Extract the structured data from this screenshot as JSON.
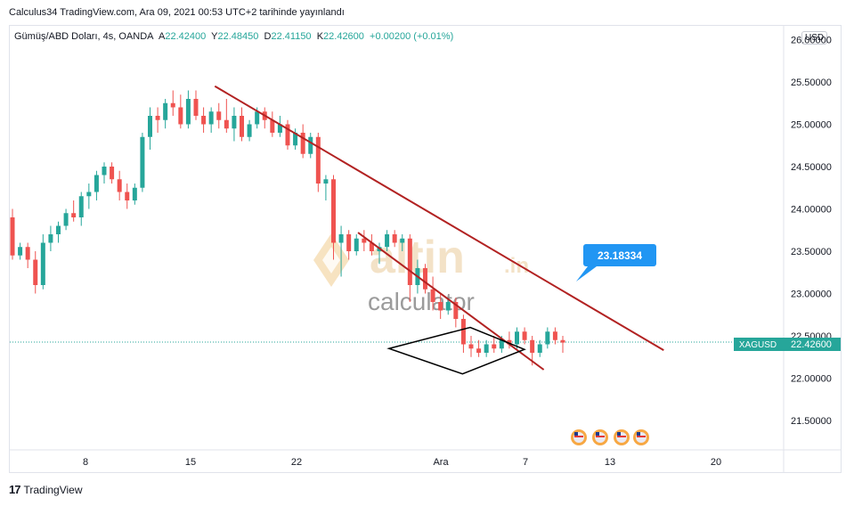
{
  "header": {
    "publish_text": "Calculus34 TradingView.com, Ara 09, 2021 00:53 UTC+2 tarihinde yayınlandı"
  },
  "legend": {
    "symbol_title": "Gümüş/ABD Doları, 4s, OANDA",
    "open_label": "A",
    "open_value": "22.42400",
    "high_label": "Y",
    "high_value": "22.48450",
    "low_label": "D",
    "low_value": "22.41150",
    "close_label": "K",
    "close_value": "22.42600",
    "change_value": "+0.00200 (+0.01%)"
  },
  "currency_button": "USD",
  "price_tag": {
    "symbol": "XAGUSD",
    "value": "22.42600"
  },
  "callout_value": "23.18334",
  "watermark": {
    "brand": "altin",
    "brand_suffix": ".in",
    "sub": "calculator"
  },
  "footer": {
    "brand": "TradingView"
  },
  "colors": {
    "up": "#26a69a",
    "down": "#ef5350",
    "trendline": "#b22222",
    "callout": "#2196f3",
    "price_line": "#26a69a"
  },
  "chart_data": {
    "type": "candlestick",
    "y_ticks": [
      "21.50000",
      "22.00000",
      "22.50000",
      "23.00000",
      "23.50000",
      "24.00000",
      "24.50000",
      "25.00000",
      "25.50000",
      "26.00000"
    ],
    "x_ticks": [
      "8",
      "15",
      "22",
      "Ara",
      "7",
      "13",
      "20"
    ],
    "ylim": [
      21.2,
      26.05
    ],
    "last_price": 22.426,
    "candles": [
      [
        23.9,
        24.0,
        23.4,
        23.45
      ],
      [
        23.45,
        23.6,
        23.4,
        23.55
      ],
      [
        23.55,
        23.6,
        23.3,
        23.4
      ],
      [
        23.4,
        23.5,
        23.0,
        23.1
      ],
      [
        23.1,
        23.7,
        23.05,
        23.6
      ],
      [
        23.6,
        23.8,
        23.5,
        23.7
      ],
      [
        23.7,
        23.85,
        23.6,
        23.8
      ],
      [
        23.8,
        24.0,
        23.75,
        23.95
      ],
      [
        23.95,
        24.1,
        23.85,
        23.9
      ],
      [
        23.9,
        24.2,
        23.8,
        24.15
      ],
      [
        24.15,
        24.3,
        24.0,
        24.2
      ],
      [
        24.2,
        24.45,
        24.1,
        24.4
      ],
      [
        24.4,
        24.55,
        24.3,
        24.5
      ],
      [
        24.5,
        24.55,
        24.3,
        24.35
      ],
      [
        24.35,
        24.45,
        24.1,
        24.2
      ],
      [
        24.2,
        24.3,
        24.0,
        24.1
      ],
      [
        24.1,
        24.3,
        24.05,
        24.25
      ],
      [
        24.25,
        24.9,
        24.2,
        24.85
      ],
      [
        24.85,
        25.2,
        24.7,
        25.1
      ],
      [
        25.1,
        25.2,
        24.9,
        25.05
      ],
      [
        25.05,
        25.3,
        24.95,
        25.25
      ],
      [
        25.25,
        25.4,
        25.1,
        25.2
      ],
      [
        25.2,
        25.35,
        24.95,
        25.0
      ],
      [
        25.0,
        25.4,
        24.95,
        25.3
      ],
      [
        25.3,
        25.4,
        25.05,
        25.1
      ],
      [
        25.1,
        25.2,
        24.9,
        25.0
      ],
      [
        25.0,
        25.2,
        24.9,
        25.15
      ],
      [
        25.15,
        25.25,
        24.95,
        25.05
      ],
      [
        25.05,
        25.3,
        24.9,
        24.95
      ],
      [
        24.95,
        25.2,
        24.8,
        25.1
      ],
      [
        25.1,
        25.2,
        24.8,
        24.85
      ],
      [
        24.85,
        25.05,
        24.8,
        25.0
      ],
      [
        25.0,
        25.2,
        24.95,
        25.15
      ],
      [
        25.15,
        25.2,
        24.95,
        25.05
      ],
      [
        25.05,
        25.15,
        24.85,
        24.9
      ],
      [
        24.9,
        25.1,
        24.85,
        25.0
      ],
      [
        25.0,
        25.05,
        24.7,
        24.75
      ],
      [
        24.75,
        24.95,
        24.7,
        24.9
      ],
      [
        24.9,
        25.0,
        24.6,
        24.65
      ],
      [
        24.65,
        24.9,
        24.6,
        24.85
      ],
      [
        24.85,
        24.9,
        24.2,
        24.3
      ],
      [
        24.3,
        24.4,
        24.1,
        24.35
      ],
      [
        24.35,
        24.4,
        23.4,
        23.6
      ],
      [
        23.6,
        23.8,
        23.2,
        23.7
      ],
      [
        23.7,
        23.75,
        23.4,
        23.5
      ],
      [
        23.5,
        23.7,
        23.45,
        23.65
      ],
      [
        23.65,
        23.75,
        23.5,
        23.6
      ],
      [
        23.6,
        23.7,
        23.45,
        23.5
      ],
      [
        23.5,
        23.6,
        23.35,
        23.55
      ],
      [
        23.55,
        23.75,
        23.5,
        23.7
      ],
      [
        23.7,
        23.75,
        23.55,
        23.6
      ],
      [
        23.6,
        23.7,
        23.5,
        23.65
      ],
      [
        23.65,
        23.7,
        22.9,
        23.1
      ],
      [
        23.1,
        23.4,
        23.0,
        23.3
      ],
      [
        23.3,
        23.35,
        23.0,
        23.05
      ],
      [
        23.05,
        23.2,
        22.8,
        22.9
      ],
      [
        22.9,
        23.0,
        22.7,
        22.8
      ],
      [
        22.8,
        22.95,
        22.75,
        22.9
      ],
      [
        22.9,
        22.95,
        22.6,
        22.7
      ],
      [
        22.7,
        22.75,
        22.3,
        22.4
      ],
      [
        22.4,
        22.5,
        22.25,
        22.35
      ],
      [
        22.35,
        22.45,
        22.25,
        22.3
      ],
      [
        22.3,
        22.45,
        22.25,
        22.4
      ],
      [
        22.4,
        22.5,
        22.3,
        22.35
      ],
      [
        22.35,
        22.5,
        22.3,
        22.45
      ],
      [
        22.45,
        22.55,
        22.35,
        22.4
      ],
      [
        22.4,
        22.6,
        22.35,
        22.55
      ],
      [
        22.55,
        22.6,
        22.4,
        22.45
      ],
      [
        22.45,
        22.5,
        22.15,
        22.3
      ],
      [
        22.3,
        22.45,
        22.25,
        22.4
      ],
      [
        22.4,
        22.6,
        22.35,
        22.55
      ],
      [
        22.55,
        22.6,
        22.4,
        22.45
      ],
      [
        22.45,
        22.5,
        22.3,
        22.42
      ]
    ],
    "trendlines": [
      {
        "name": "upper",
        "from": [
          0.265,
          25.45
        ],
        "to": [
          0.845,
          22.33
        ]
      },
      {
        "name": "lower",
        "from": [
          0.45,
          23.72
        ],
        "to": [
          0.69,
          22.1
        ]
      }
    ],
    "pattern": {
      "type": "diamond",
      "points": [
        [
          0.49,
          22.35
        ],
        [
          0.595,
          22.6
        ],
        [
          0.665,
          22.34
        ],
        [
          0.585,
          22.05
        ]
      ]
    }
  }
}
